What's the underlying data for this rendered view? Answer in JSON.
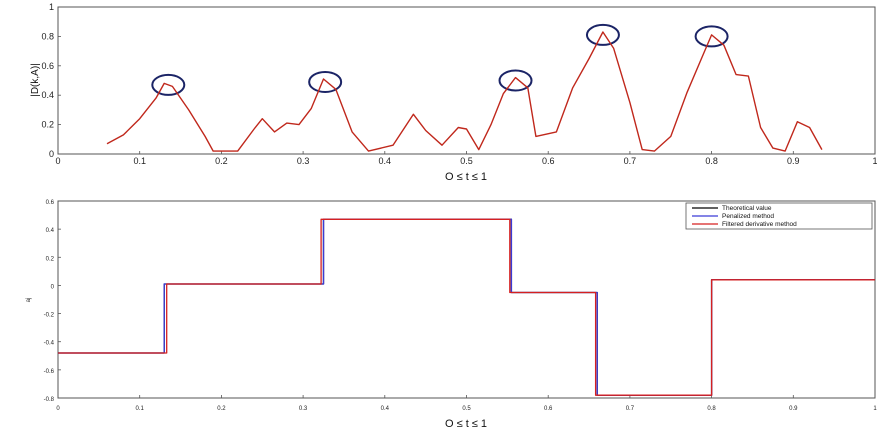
{
  "chart_data": [
    {
      "type": "line",
      "xlabel": "O ≤ t ≤ 1",
      "ylabel": "|D(k,A)|",
      "xlim": [
        0,
        1
      ],
      "ylim": [
        0,
        1
      ],
      "xticks": [
        "0",
        "0.1",
        "0.2",
        "0.3",
        "0.4",
        "0.5",
        "0.6",
        "0.7",
        "0.8",
        "0.9",
        "1"
      ],
      "yticks": [
        "0",
        "0.2",
        "0.4",
        "0.6",
        "0.8",
        "1"
      ],
      "series": [
        {
          "color": "#c0281c",
          "points": [
            [
              0.06,
              0.07
            ],
            [
              0.08,
              0.13
            ],
            [
              0.1,
              0.24
            ],
            [
              0.12,
              0.38
            ],
            [
              0.13,
              0.48
            ],
            [
              0.14,
              0.46
            ],
            [
              0.16,
              0.3
            ],
            [
              0.18,
              0.12
            ],
            [
              0.19,
              0.02
            ],
            [
              0.22,
              0.02
            ],
            [
              0.24,
              0.17
            ],
            [
              0.25,
              0.24
            ],
            [
              0.265,
              0.15
            ],
            [
              0.28,
              0.21
            ],
            [
              0.295,
              0.2
            ],
            [
              0.31,
              0.31
            ],
            [
              0.325,
              0.51
            ],
            [
              0.34,
              0.44
            ],
            [
              0.36,
              0.15
            ],
            [
              0.38,
              0.02
            ],
            [
              0.41,
              0.06
            ],
            [
              0.435,
              0.27
            ],
            [
              0.45,
              0.16
            ],
            [
              0.47,
              0.06
            ],
            [
              0.49,
              0.18
            ],
            [
              0.5,
              0.17
            ],
            [
              0.515,
              0.03
            ],
            [
              0.53,
              0.2
            ],
            [
              0.545,
              0.41
            ],
            [
              0.56,
              0.52
            ],
            [
              0.575,
              0.45
            ],
            [
              0.585,
              0.12
            ],
            [
              0.61,
              0.15
            ],
            [
              0.63,
              0.45
            ],
            [
              0.65,
              0.65
            ],
            [
              0.667,
              0.83
            ],
            [
              0.68,
              0.72
            ],
            [
              0.7,
              0.35
            ],
            [
              0.715,
              0.03
            ],
            [
              0.73,
              0.02
            ],
            [
              0.75,
              0.12
            ],
            [
              0.77,
              0.42
            ],
            [
              0.79,
              0.68
            ],
            [
              0.8,
              0.81
            ],
            [
              0.815,
              0.74
            ],
            [
              0.83,
              0.54
            ],
            [
              0.845,
              0.53
            ],
            [
              0.86,
              0.18
            ],
            [
              0.875,
              0.04
            ],
            [
              0.89,
              0.02
            ],
            [
              0.905,
              0.22
            ],
            [
              0.92,
              0.18
            ],
            [
              0.935,
              0.03
            ]
          ]
        }
      ],
      "annotations": [
        {
          "shape": "circle",
          "x": 0.135,
          "y": 0.47
        },
        {
          "shape": "circle",
          "x": 0.327,
          "y": 0.49
        },
        {
          "shape": "circle",
          "x": 0.56,
          "y": 0.5
        },
        {
          "shape": "circle",
          "x": 0.667,
          "y": 0.81
        },
        {
          "shape": "circle",
          "x": 0.8,
          "y": 0.8
        }
      ]
    },
    {
      "type": "line",
      "xlabel": "O ≤ t ≤ 1",
      "ylabel": "aj",
      "xlim": [
        0,
        1
      ],
      "ylim": [
        -0.8,
        0.6
      ],
      "xticks": [
        "0",
        "0.1",
        "0.2",
        "0.3",
        "0.4",
        "0.5",
        "0.6",
        "0.7",
        "0.8",
        "0.9",
        "1"
      ],
      "yticks": [
        "-0.8",
        "-0.6",
        "-0.4",
        "-0.2",
        "0",
        "0.2",
        "0.4",
        "0.6"
      ],
      "legend_position": "top-right",
      "series": [
        {
          "name": "Theoretical value",
          "color": "#000000",
          "x": [
            0,
            0.13,
            0.13,
            0.325,
            0.325,
            0.555,
            0.555,
            0.66,
            0.66,
            0.8,
            0.8,
            1
          ],
          "y": [
            -0.48,
            -0.48,
            0.01,
            0.01,
            0.47,
            0.47,
            -0.05,
            -0.05,
            -0.78,
            -0.78,
            0.04,
            0.04
          ]
        },
        {
          "name": "Penalized method",
          "color": "#3b3bd6",
          "x": [
            0,
            0.13,
            0.13,
            0.325,
            0.325,
            0.555,
            0.555,
            0.66,
            0.66,
            0.8,
            0.8,
            1
          ],
          "y": [
            -0.48,
            -0.48,
            0.01,
            0.01,
            0.47,
            0.47,
            -0.05,
            -0.05,
            -0.78,
            -0.78,
            0.04,
            0.04
          ]
        },
        {
          "name": "Filtered derivative method",
          "color": "#d62020",
          "x": [
            0,
            0.133,
            0.133,
            0.322,
            0.322,
            0.553,
            0.553,
            0.658,
            0.658,
            0.8,
            0.8,
            1
          ],
          "y": [
            -0.48,
            -0.48,
            0.01,
            0.01,
            0.47,
            0.47,
            -0.05,
            -0.05,
            -0.78,
            -0.78,
            0.04,
            0.04
          ]
        }
      ]
    }
  ]
}
